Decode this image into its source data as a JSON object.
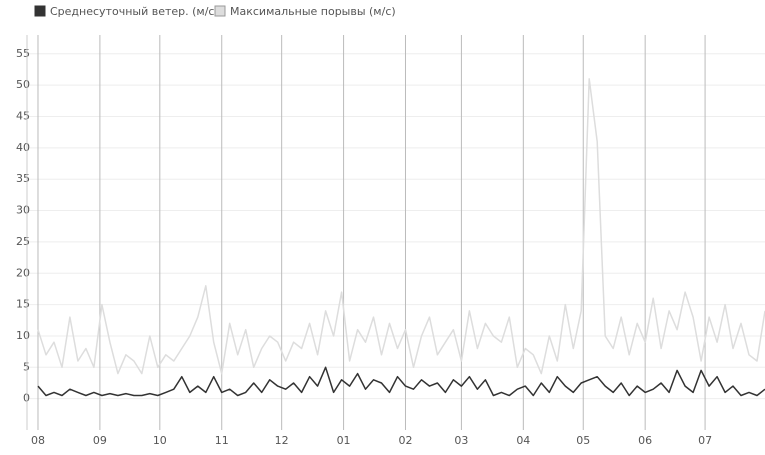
{
  "chart_data": {
    "type": "line",
    "x": [
      0,
      4,
      8,
      12,
      16,
      20,
      24,
      28,
      32,
      36,
      40,
      44,
      48,
      52,
      56,
      60,
      64,
      68,
      72,
      76,
      80,
      84,
      88,
      92,
      96,
      100,
      104,
      108,
      112,
      116,
      120,
      124,
      128,
      132,
      136,
      140,
      144,
      148,
      152,
      156,
      160,
      164,
      168,
      172,
      176,
      180,
      184,
      188,
      192,
      196,
      200,
      204,
      208,
      212,
      216,
      220,
      224,
      228,
      232,
      236,
      240,
      244,
      248,
      252,
      256,
      260,
      264,
      268,
      272,
      276,
      280,
      284,
      288,
      292,
      296,
      300,
      304,
      308,
      312,
      316,
      320,
      324,
      328,
      332,
      336,
      340,
      344,
      348,
      352,
      356,
      360,
      364
    ],
    "series": [
      {
        "name": "Среднесуточный ветер. (м/с)",
        "color": "#333333",
        "values": [
          2,
          0.5,
          1,
          0.5,
          1.5,
          1,
          0.5,
          1,
          0.5,
          0.8,
          0.5,
          0.8,
          0.5,
          0.5,
          0.8,
          0.5,
          1,
          1.5,
          3.5,
          1,
          2,
          1,
          3.5,
          1,
          1.5,
          0.5,
          1,
          2.5,
          1,
          3,
          2,
          1.5,
          2.5,
          1,
          3.5,
          2,
          5,
          1,
          3,
          2,
          4,
          1.5,
          3,
          2.5,
          1,
          3.5,
          2,
          1.5,
          3,
          2,
          2.5,
          1,
          3,
          2,
          3.5,
          1.5,
          3,
          0.5,
          1,
          0.5,
          1.5,
          2,
          0.5,
          2.5,
          1,
          3.5,
          2,
          1,
          2.5,
          3,
          3.5,
          2,
          1,
          2.5,
          0.5,
          2,
          1,
          1.5,
          2.5,
          1,
          4.5,
          2,
          1,
          4.5,
          2,
          3.5,
          1,
          2,
          0.5,
          1,
          0.5,
          1.5
        ]
      },
      {
        "name": "Максимальные порывы (м/с)",
        "color": "#dddddd",
        "values": [
          11,
          7,
          9,
          5,
          13,
          6,
          8,
          5,
          15,
          9,
          4,
          7,
          6,
          4,
          10,
          5,
          7,
          6,
          8,
          10,
          13,
          18,
          9,
          4,
          12,
          7,
          11,
          5,
          8,
          10,
          9,
          6,
          9,
          8,
          12,
          7,
          14,
          10,
          17,
          6,
          11,
          9,
          13,
          7,
          12,
          8,
          11,
          5,
          10,
          13,
          7,
          9,
          11,
          6,
          14,
          8,
          12,
          10,
          9,
          13,
          5,
          8,
          7,
          4,
          10,
          6,
          15,
          8,
          14,
          51,
          41,
          10,
          8,
          13,
          7,
          12,
          9,
          16,
          8,
          14,
          11,
          17,
          13,
          6,
          13,
          9,
          15,
          8,
          12,
          7,
          6,
          14
        ]
      }
    ],
    "xlim": [
      -5,
      364
    ],
    "xticks": [
      {
        "value": 0,
        "label": "08"
      },
      {
        "value": 31,
        "label": "09"
      },
      {
        "value": 61,
        "label": "10"
      },
      {
        "value": 92,
        "label": "11"
      },
      {
        "value": 122,
        "label": "12"
      },
      {
        "value": 153,
        "label": "01"
      },
      {
        "value": 184,
        "label": "02"
      },
      {
        "value": 212,
        "label": "03"
      },
      {
        "value": 243,
        "label": "04"
      },
      {
        "value": 273,
        "label": "05"
      },
      {
        "value": 304,
        "label": "06"
      },
      {
        "value": 334,
        "label": "07"
      }
    ],
    "ylim": [
      -5,
      58
    ],
    "yticks": [
      0,
      5,
      10,
      15,
      20,
      25,
      30,
      35,
      40,
      45,
      50,
      55
    ],
    "grid": true
  }
}
